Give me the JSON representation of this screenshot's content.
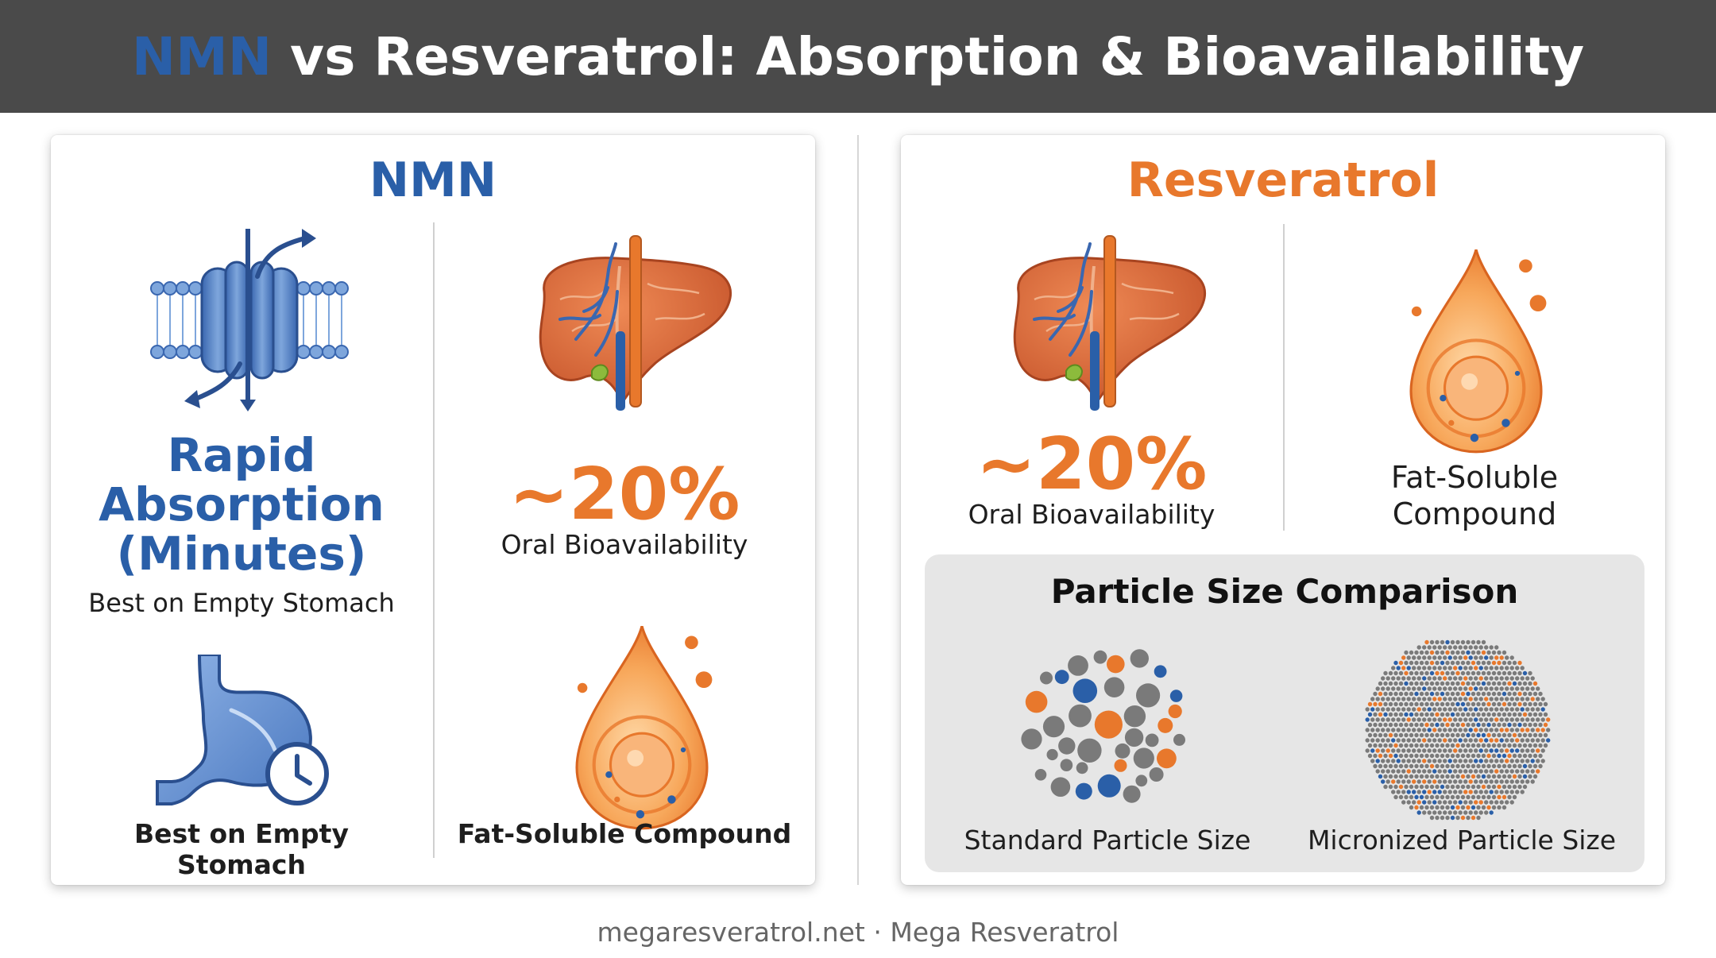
{
  "header": {
    "title_accent": "NMN",
    "title_rest": " vs Resveratrol: Absorption & Bioavailability"
  },
  "nmn": {
    "title": "NMN",
    "rapid_line1": "Rapid",
    "rapid_line2": "Absorption",
    "rapid_line3": "(Minutes)",
    "rapid_sub": "Best on Empty Stomach",
    "bio_value": "~20%",
    "bio_label": "Oral Bioavailability",
    "stomach_label": "Best on Empty Stomach",
    "fat_label": "Fat-Soluble Compound",
    "icons": [
      "membrane-channel-icon",
      "liver-icon",
      "stomach-clock-icon",
      "fat-droplet-icon"
    ]
  },
  "resveratrol": {
    "title": "Resveratrol",
    "bio_value": "~20%",
    "bio_label": "Oral Bioavailability",
    "fat_line1": "Fat-Soluble",
    "fat_line2": "Compound",
    "particle_title": "Particle Size Comparison",
    "standard_label": "Standard Particle Size",
    "micronized_label": "Micronized Particle Size",
    "icons": [
      "liver-icon",
      "fat-droplet-icon",
      "standard-particles-icon",
      "micronized-particles-icon"
    ]
  },
  "footer": {
    "text": "megaresveratrol.net · Mega Resveratrol"
  },
  "colors": {
    "header_bg": "#4a4a4a",
    "nmn_blue": "#2a5fa8",
    "resveratrol_orange": "#e8782c",
    "panel_gray": "#e6e6e6"
  }
}
